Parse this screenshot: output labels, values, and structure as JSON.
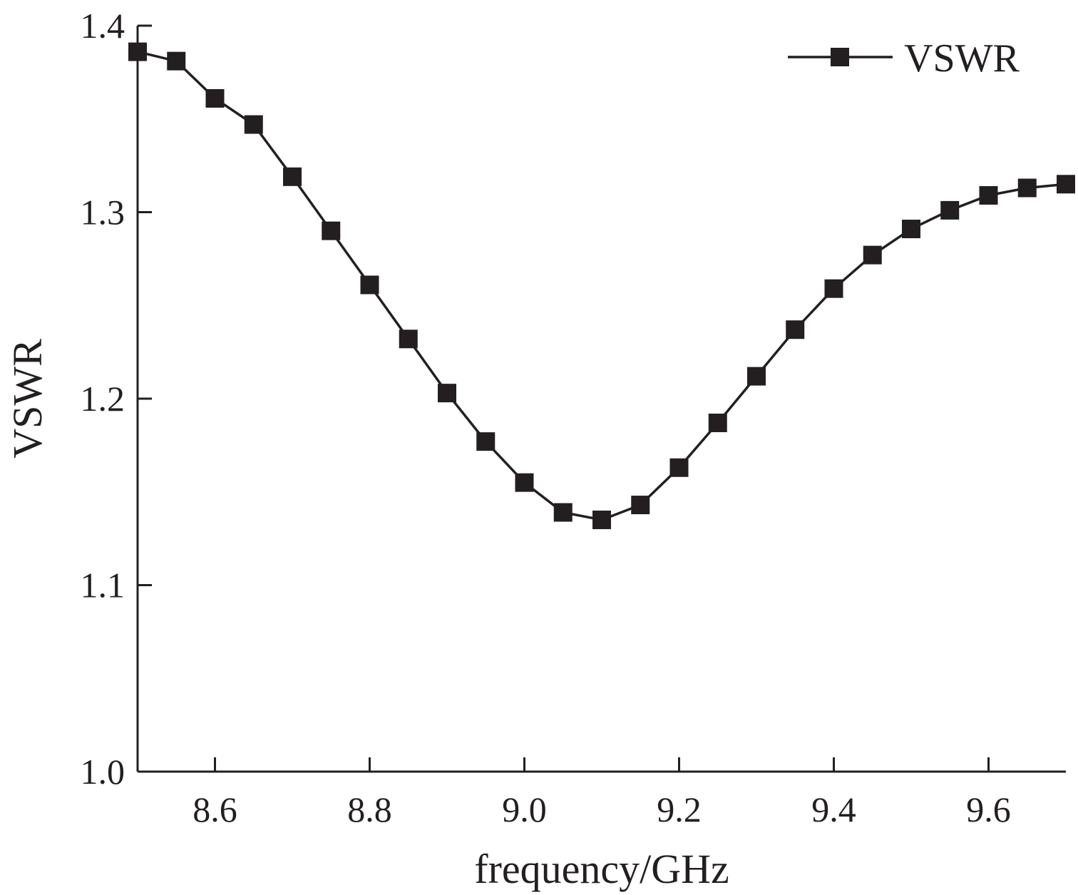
{
  "chart_data": {
    "type": "line",
    "title": "",
    "xlabel": "frequency/GHz",
    "ylabel": "VSWR",
    "xlim": [
      8.5,
      9.7
    ],
    "ylim": [
      1.0,
      1.4
    ],
    "x_ticks": [
      8.6,
      8.8,
      9.0,
      9.2,
      9.4,
      9.6
    ],
    "x_tick_labels": [
      "8.6",
      "8.8",
      "9.0",
      "9.2",
      "9.4",
      "9.6"
    ],
    "y_ticks": [
      1.0,
      1.1,
      1.2,
      1.3,
      1.4
    ],
    "y_tick_labels": [
      "1.0",
      "1.1",
      "1.2",
      "1.3",
      "1.4"
    ],
    "grid": false,
    "legend_position": "top-right",
    "colors": {
      "series": "#231f20",
      "axis": "#231f20"
    },
    "x": [
      8.5,
      8.55,
      8.6,
      8.65,
      8.7,
      8.75,
      8.8,
      8.85,
      8.9,
      8.95,
      9.0,
      9.05,
      9.1,
      9.15,
      9.2,
      9.25,
      9.3,
      9.35,
      9.4,
      9.45,
      9.5,
      9.55,
      9.6,
      9.65,
      9.7
    ],
    "series": [
      {
        "name": "VSWR",
        "marker": "square",
        "values": [
          1.386,
          1.381,
          1.361,
          1.347,
          1.319,
          1.29,
          1.261,
          1.232,
          1.203,
          1.177,
          1.155,
          1.139,
          1.135,
          1.143,
          1.163,
          1.187,
          1.212,
          1.237,
          1.259,
          1.277,
          1.291,
          1.301,
          1.309,
          1.313,
          1.315
        ]
      }
    ]
  }
}
